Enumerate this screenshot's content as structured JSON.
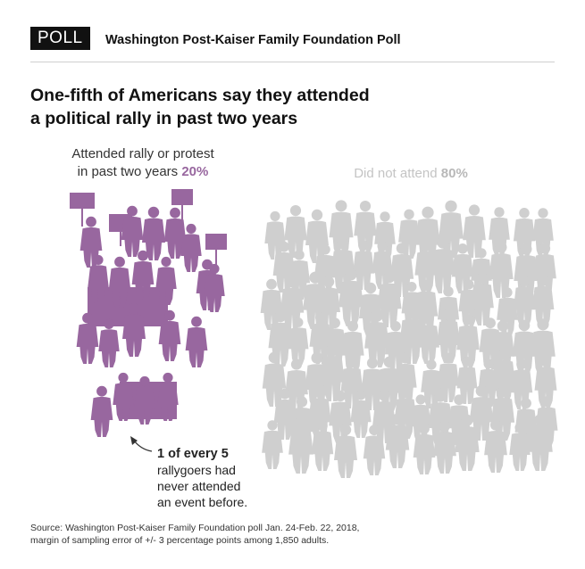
{
  "header": {
    "badge": "POLL",
    "organization": "Washington Post-Kaiser Family Foundation Poll"
  },
  "headline": {
    "line1": "One-fifth of Americans say they attended",
    "line2": "a political rally in past two years"
  },
  "chart_data": {
    "type": "pictograph",
    "categories": [
      "Attended rally or protest in past two years",
      "Did not attend"
    ],
    "values": [
      20,
      80
    ],
    "unit": "%",
    "colors": [
      "#98679f",
      "#cfcfcf"
    ],
    "labels": {
      "attended_line1": "Attended rally or protest",
      "attended_line2": "in past two years",
      "attended_pct": "20%",
      "not_attended": "Did not attend",
      "not_attended_pct": "80%"
    },
    "annotation": {
      "line1": "1 of every 5",
      "line2": "rallygoers had",
      "line3": "never attended",
      "line4": "an event before."
    }
  },
  "footer": {
    "source_line1": "Source: Washington Post-Kaiser Family Foundation poll Jan. 24-Feb. 22, 2018,",
    "source_line2": "margin of sampling error of +/- 3 percentage points among 1,850 adults."
  }
}
